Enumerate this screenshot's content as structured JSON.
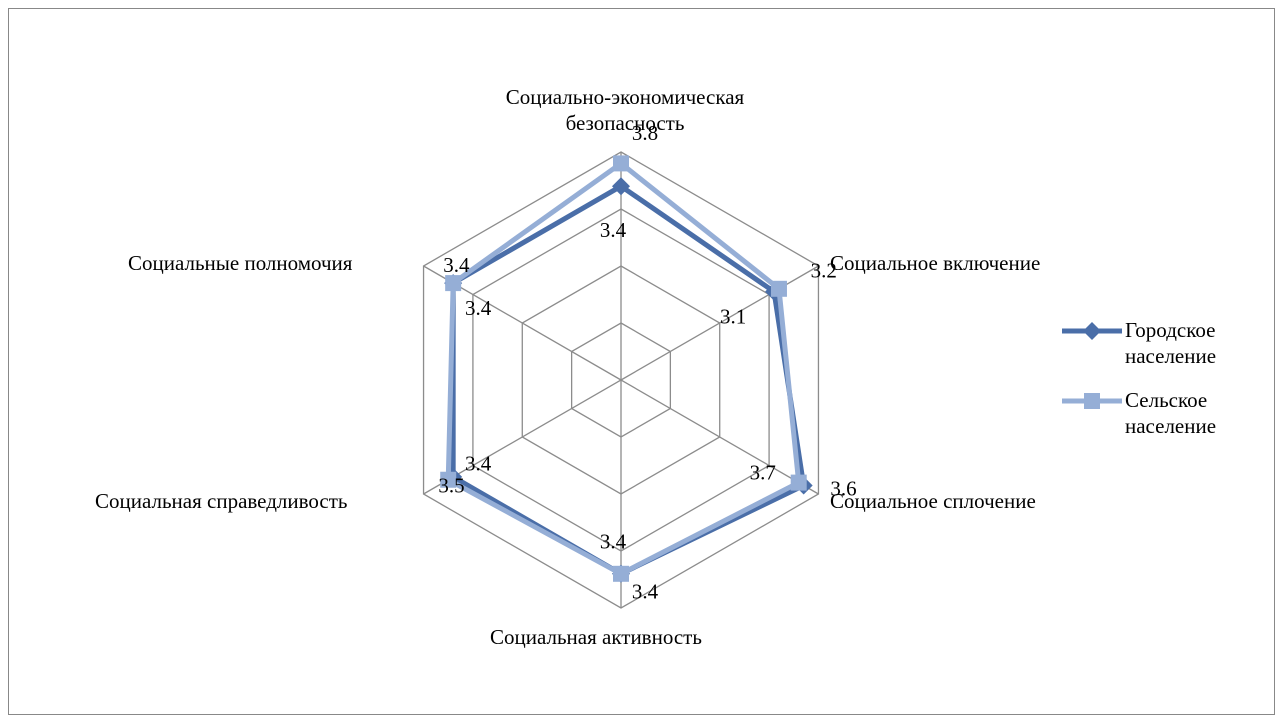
{
  "chart_data": {
    "type": "radar",
    "categories": [
      "Социально-экономическая безопасность",
      "Социальное включение",
      "Социальное сплочение",
      "Социальная активность",
      "Социальная справедливость",
      "Социальные полномочия"
    ],
    "series": [
      {
        "name": "Городское население",
        "color": "#4a6ea8",
        "marker": "diamond",
        "values": [
          3.4,
          3.1,
          3.7,
          3.4,
          3.4,
          3.4
        ]
      },
      {
        "name": "Сельское население",
        "color": "#95aed6",
        "marker": "square",
        "values": [
          3.8,
          3.2,
          3.6,
          3.4,
          3.5,
          3.4
        ]
      }
    ],
    "ylim": [
      0,
      4
    ],
    "yticks": [
      0,
      1,
      2,
      3,
      4
    ],
    "grid": true,
    "legend": "right"
  }
}
